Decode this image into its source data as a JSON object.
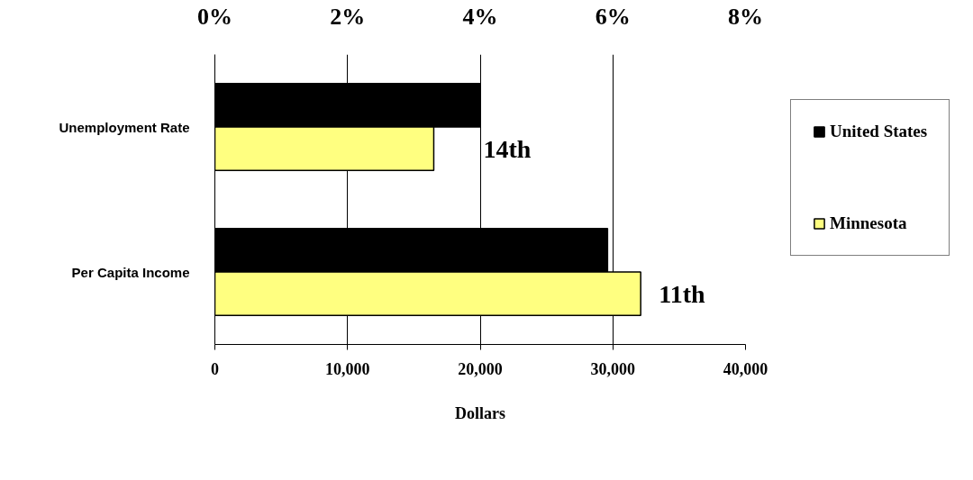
{
  "chart_data": {
    "type": "bar",
    "orientation": "horizontal",
    "categories": [
      "Unemployment Rate",
      "Per Capita Income"
    ],
    "series": [
      {
        "name": "United States",
        "color": "#000000",
        "values": [
          null,
          29600
        ]
      },
      {
        "name": "Minnesota",
        "color": "#ffff80",
        "values": [
          null,
          32100
        ]
      },
      {
        "color": "#000000",
        "axis": "x2",
        "values": [
          4.0,
          null
        ]
      },
      {
        "color": "#ffff80",
        "axis": "x2",
        "values": [
          3.3,
          null
        ]
      }
    ],
    "xlim": [
      0,
      40000
    ],
    "xticks": [
      0,
      {
        "value": 10000,
        "label": "10,000"
      },
      {
        "value": 20000,
        "label": "20,000"
      },
      {
        "value": 30000,
        "label": "30,000"
      },
      {
        "value": 40000,
        "label": "40,000"
      }
    ],
    "x2lim": [
      0,
      8
    ],
    "x2ticks": [
      {
        "value": 0,
        "label": "0%"
      },
      {
        "value": 2,
        "label": "2%"
      },
      {
        "value": 4,
        "label": "4%"
      },
      {
        "value": 6,
        "label": "6%"
      },
      {
        "value": 8,
        "label": "8%"
      }
    ],
    "xlabel": "Dollars",
    "annotations": [
      "14th",
      "11th"
    ],
    "grid": "x",
    "legend": "right"
  }
}
